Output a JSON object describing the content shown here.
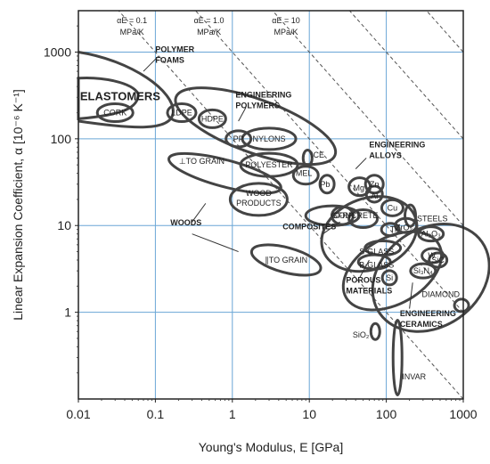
{
  "chart_data": {
    "type": "scatter",
    "xlabel": "Young's Modulus, E [GPa]",
    "ylabel": "Linear Expansion Coefficient, α [10⁻⁶ K⁻¹]",
    "xscale": "log",
    "yscale": "log",
    "xlim": [
      0.01,
      1000
    ],
    "ylim": [
      0.1,
      3000
    ],
    "xticks": [
      {
        "value": 0.01,
        "label": "0.01"
      },
      {
        "value": 0.1,
        "label": "0.1"
      },
      {
        "value": 1,
        "label": "1"
      },
      {
        "value": 10,
        "label": "10"
      },
      {
        "value": 100,
        "label": "100"
      },
      {
        "value": 1000,
        "label": "1000"
      }
    ],
    "yticks": [
      {
        "value": 1,
        "label": "1"
      },
      {
        "value": 10,
        "label": "10"
      },
      {
        "value": 100,
        "label": "100"
      },
      {
        "value": 1000,
        "label": "1000"
      }
    ],
    "grid": true,
    "guidelines": [
      {
        "label_top": "αE = 0.1",
        "label_bottom": "MPa/K",
        "product": 0.1
      },
      {
        "label_top": "αE = 1.0",
        "label_bottom": "MPa/K",
        "product": 1.0
      },
      {
        "label_top": "αE = 10",
        "label_bottom": "MPa/K",
        "product": 10
      }
    ],
    "families": [
      {
        "name": "POLYMER FOAMS",
        "x_range": [
          0.01,
          0.15
        ],
        "y_range": [
          150,
          1000
        ]
      },
      {
        "name": "ELASTOMERS",
        "x_range": [
          0.01,
          0.05
        ],
        "y_range": [
          150,
          500
        ]
      },
      {
        "name": "ENGINEERING POLYMERS",
        "x_range": [
          0.15,
          15
        ],
        "y_range": [
          40,
          300
        ]
      },
      {
        "name": "ENGINEERING ALLOYS",
        "x_range": [
          15,
          400
        ],
        "y_range": [
          1,
          60
        ]
      },
      {
        "name": "WOODS",
        "x_range": [
          0.2,
          30
        ],
        "y_range": [
          2,
          80
        ]
      },
      {
        "name": "COMPOSITES",
        "x_range": [
          10,
          60
        ],
        "y_range": [
          5,
          30
        ]
      },
      {
        "name": "POROUS MATERIALS",
        "x_range": [
          30,
          100
        ],
        "y_range": [
          2,
          20
        ]
      },
      {
        "name": "ENGINEERING CERAMICS",
        "x_range": [
          80,
          1000
        ],
        "y_range": [
          1,
          20
        ]
      }
    ],
    "materials": [
      {
        "label": "CORK",
        "x": 0.03,
        "y": 200
      },
      {
        "label": "LDPE",
        "x": 0.22,
        "y": 200
      },
      {
        "label": "HDPE",
        "x": 0.55,
        "y": 170
      },
      {
        "label": "PP",
        "x": 1.2,
        "y": 100
      },
      {
        "label": "NYLONS",
        "x": 3,
        "y": 100
      },
      {
        "label": "POLYESTER",
        "x": 3,
        "y": 50
      },
      {
        "label": "MEL",
        "x": 8.5,
        "y": 40
      },
      {
        "label": "ICE",
        "x": 9.5,
        "y": 55
      },
      {
        "label": "Pb",
        "x": 15,
        "y": 30
      },
      {
        "label": "Mg",
        "x": 44,
        "y": 27
      },
      {
        "label": "Zn",
        "x": 70,
        "y": 30
      },
      {
        "label": "Al",
        "x": 70,
        "y": 23
      },
      {
        "label": "Cu",
        "x": 120,
        "y": 16
      },
      {
        "label": "STEELS",
        "x": 210,
        "y": 12
      },
      {
        "label": "Ti",
        "x": 110,
        "y": 9
      },
      {
        "label": "ZrO₂",
        "x": 200,
        "y": 10
      },
      {
        "label": "Al₂O₃",
        "x": 380,
        "y": 8
      },
      {
        "label": "W",
        "x": 400,
        "y": 4.5
      },
      {
        "label": "SiC",
        "x": 450,
        "y": 4
      },
      {
        "label": "Si₃N₄",
        "x": 310,
        "y": 3
      },
      {
        "label": "Si",
        "x": 110,
        "y": 2.5
      },
      {
        "label": "DIAMOND",
        "x": 1000,
        "y": 1.2
      },
      {
        "label": "SiO₂",
        "x": 75,
        "y": 0.55
      },
      {
        "label": "INVAR",
        "x": 145,
        "y": 0.2
      },
      {
        "label": "CONCRETE",
        "x": 40,
        "y": 11
      },
      {
        "label": "S-GLASS",
        "x": 85,
        "y": 5
      },
      {
        "label": "B-GLASS",
        "x": 65,
        "y": 4
      },
      {
        "label": "GFRP",
        "x": 30,
        "y": 13
      },
      {
        "label": "WOOD PRODUCTS",
        "x": 2,
        "y": 20
      },
      {
        "label": "⊥TO GRAIN",
        "x": 1,
        "y": 40
      },
      {
        "label": "∥TO GRAIN",
        "x": 10,
        "y": 5
      }
    ]
  }
}
